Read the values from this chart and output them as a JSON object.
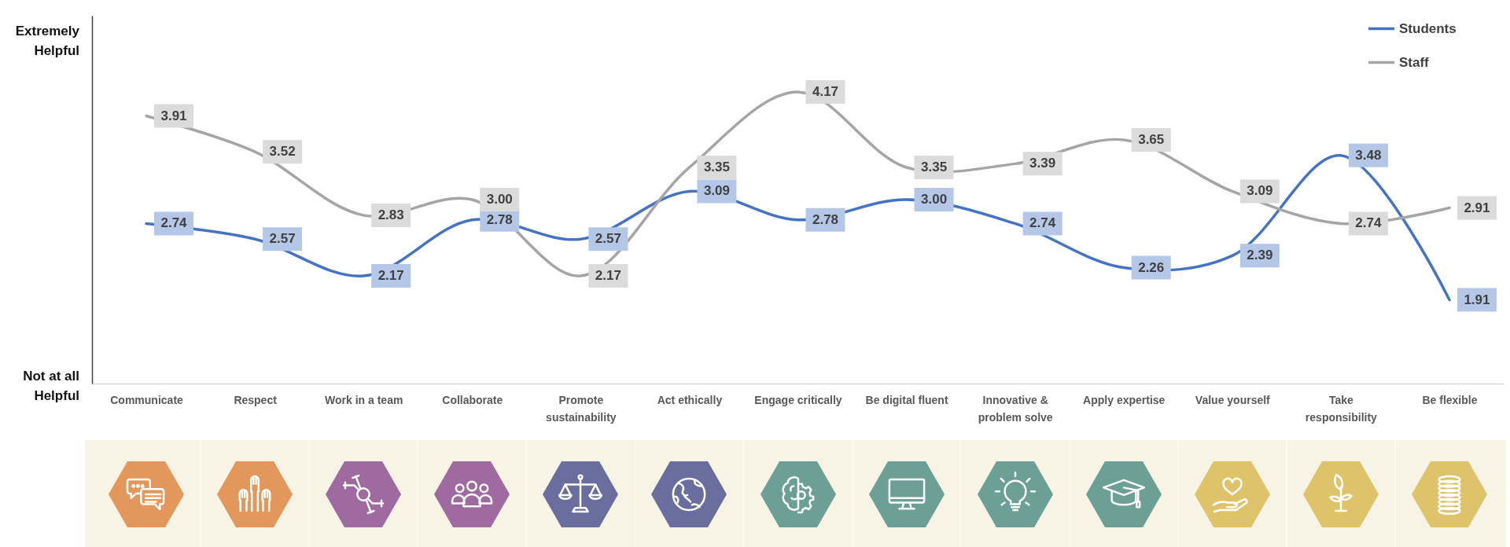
{
  "chart_data": {
    "type": "line",
    "categories": [
      "Communicate",
      "Respect",
      "Work in a team",
      "Collaborate",
      "Promote sustainability",
      "Act ethically",
      "Engage critically",
      "Be digital fluent",
      "Innovative & problem solve",
      "Apply expertise",
      "Value yourself",
      "Take responsibility",
      "Be flexible"
    ],
    "series": [
      {
        "name": "Students",
        "color": "#4472c4",
        "values": [
          2.74,
          2.57,
          2.17,
          2.78,
          2.57,
          3.09,
          2.78,
          3.0,
          2.74,
          2.26,
          2.39,
          3.48,
          1.91
        ],
        "value_labels": [
          "2.74",
          "2.57",
          "2.17",
          "2.78",
          "2.57",
          "3.09",
          "2.78",
          "3.00",
          "2.74",
          "2.26",
          "2.39",
          "3.48",
          "1.91"
        ]
      },
      {
        "name": "Staff",
        "color": "#a5a5a5",
        "values": [
          3.91,
          3.52,
          2.83,
          3.0,
          2.17,
          3.35,
          4.17,
          3.35,
          3.39,
          3.65,
          3.09,
          2.74,
          2.91
        ],
        "value_labels": [
          "3.91",
          "3.52",
          "2.83",
          "3.00",
          "2.17",
          "3.35",
          "4.17",
          "3.35",
          "3.39",
          "3.65",
          "3.09",
          "2.74",
          "2.91"
        ]
      }
    ],
    "ylim": [
      1,
      5
    ],
    "tick_labels": "x",
    "annotations": [
      "Extremely Helpful",
      "Not at all Helpful"
    ],
    "legend": "top right",
    "line_style": "solid"
  }
}
